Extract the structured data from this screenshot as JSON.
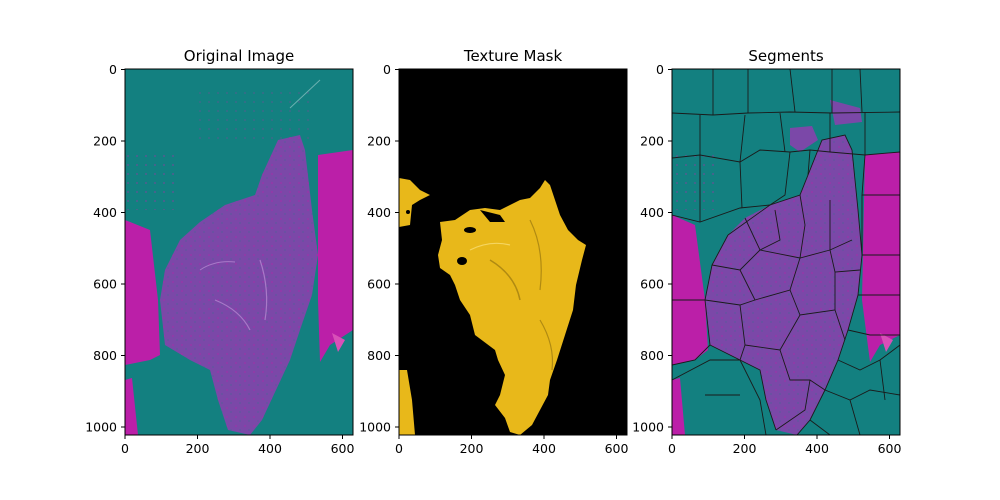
{
  "figure": {
    "panels": [
      {
        "id": "original",
        "title": "Original Image",
        "xticks": [
          "0",
          "200",
          "400",
          "600"
        ],
        "yticks": [
          "0",
          "200",
          "400",
          "600",
          "800",
          "1000"
        ]
      },
      {
        "id": "mask",
        "title": "Texture Mask",
        "xticks": [
          "0",
          "200",
          "400",
          "600"
        ],
        "yticks": [
          "0",
          "200",
          "400",
          "600",
          "800",
          "1000"
        ]
      },
      {
        "id": "segments",
        "title": "Segments",
        "xticks": [
          "0",
          "200",
          "400",
          "600"
        ],
        "yticks": [
          "0",
          "200",
          "400",
          "600",
          "800",
          "1000"
        ]
      }
    ],
    "colors": {
      "teal": "#138080",
      "magenta": "#bb1fa8",
      "purple": "#7b48a8",
      "mask_bg": "#000000",
      "mask_fg": "#e8b81a",
      "segment_edge": "#1a1a1a"
    }
  }
}
